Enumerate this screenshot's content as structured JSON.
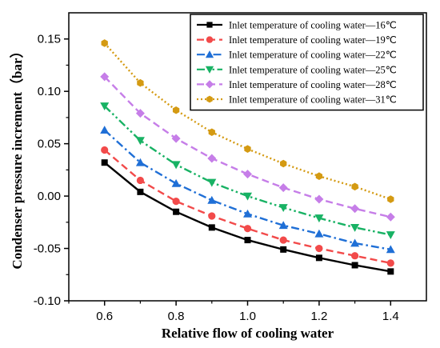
{
  "chart_data": {
    "type": "line",
    "xlabel": "Relative flow of cooling water",
    "ylabel": "Condenser pressure increment（bar）",
    "xlim": [
      0.5,
      1.5
    ],
    "ylim": [
      -0.1,
      0.175
    ],
    "x_ticks": [
      0.6,
      0.8,
      1.0,
      1.2,
      1.4
    ],
    "x_tick_labels": [
      "0.6",
      "0.8",
      "1.0",
      "1.2",
      "1.4"
    ],
    "y_ticks": [
      -0.1,
      -0.05,
      0.0,
      0.05,
      0.1,
      0.15
    ],
    "y_tick_labels": [
      "-0.10",
      "-0.05",
      "0.00",
      "0.05",
      "0.10",
      "0.15"
    ],
    "legend_position": "top-right",
    "x": [
      0.6,
      0.7,
      0.8,
      0.9,
      1.0,
      1.1,
      1.2,
      1.3,
      1.4
    ],
    "series": [
      {
        "name": "Inlet temperature of cooling water—16℃",
        "color": "#000000",
        "dash": "solid",
        "marker": "square",
        "values": [
          0.032,
          0.004,
          -0.015,
          -0.03,
          -0.042,
          -0.051,
          -0.059,
          -0.066,
          -0.072
        ]
      },
      {
        "name": "Inlet temperature of cooling water—19℃",
        "color": "#f24a4a",
        "dash": "dash",
        "marker": "circle",
        "values": [
          0.044,
          0.015,
          -0.005,
          -0.019,
          -0.031,
          -0.042,
          -0.05,
          -0.057,
          -0.064
        ]
      },
      {
        "name": "Inlet temperature of cooling water—22℃",
        "color": "#1f6fd6",
        "dash": "dashdot",
        "marker": "triangle-up",
        "values": [
          0.063,
          0.032,
          0.012,
          -0.004,
          -0.017,
          -0.028,
          -0.036,
          -0.045,
          -0.051
        ]
      },
      {
        "name": "Inlet temperature of cooling water—25℃",
        "color": "#18b264",
        "dash": "dashdotdot",
        "marker": "triangle-down",
        "values": [
          0.086,
          0.053,
          0.03,
          0.013,
          0.0,
          -0.011,
          -0.021,
          -0.03,
          -0.037
        ]
      },
      {
        "name": "Inlet temperature of cooling water—28℃",
        "color": "#c67ee8",
        "dash": "dash",
        "marker": "diamond",
        "values": [
          0.114,
          0.079,
          0.055,
          0.036,
          0.021,
          0.008,
          -0.003,
          -0.012,
          -0.02
        ]
      },
      {
        "name": "Inlet temperature of cooling water—31℃",
        "color": "#d49a12",
        "dash": "dot",
        "marker": "hexagon",
        "values": [
          0.146,
          0.108,
          0.082,
          0.061,
          0.045,
          0.031,
          0.019,
          0.009,
          -0.003
        ]
      }
    ]
  }
}
